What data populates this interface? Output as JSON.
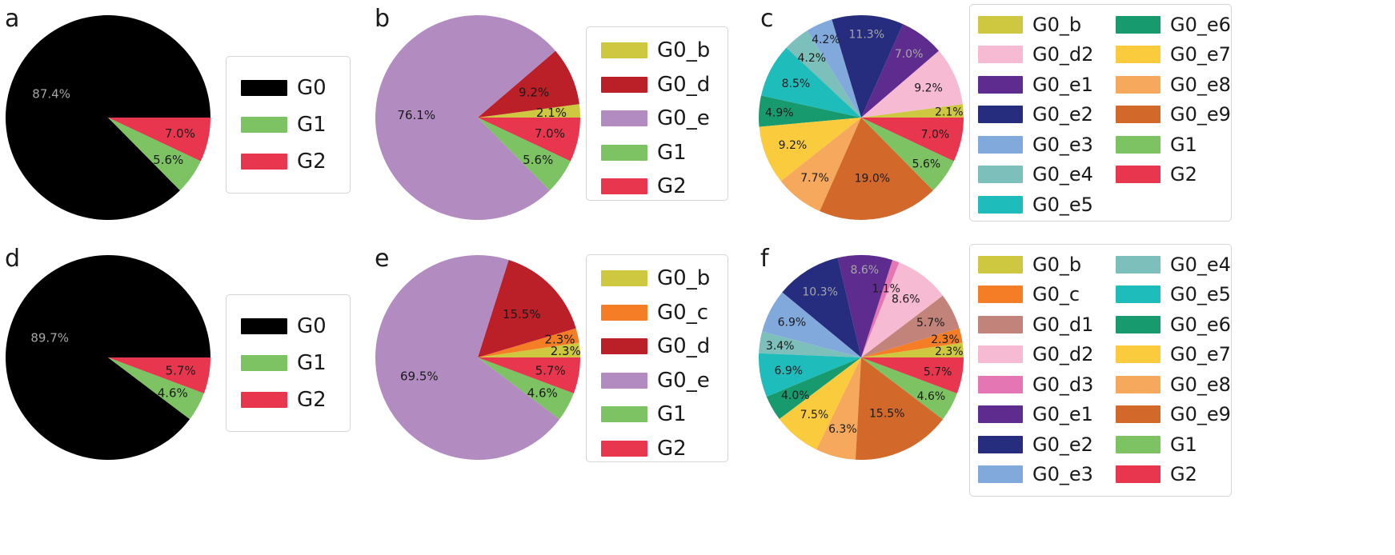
{
  "chart_data": [
    {
      "panel": "a",
      "type": "pie",
      "slices": [
        {
          "label": "G0",
          "value": 87.4,
          "text": "87.4%",
          "color": "#000000",
          "label_color": "#a6a6a6"
        },
        {
          "label": "G1",
          "value": 5.6,
          "text": "5.6%",
          "color": "#7dc363",
          "label_color": "#1a1a1a"
        },
        {
          "label": "G2",
          "value": 7.0,
          "text": "7.0%",
          "color": "#e8364f",
          "label_color": "#1a1a1a"
        }
      ],
      "legend": [
        "G0",
        "G1",
        "G2"
      ]
    },
    {
      "panel": "b",
      "type": "pie",
      "slices": [
        {
          "label": "G0_b",
          "value": 2.1,
          "text": "2.1%",
          "color": "#cdc840",
          "label_color": "#1a1a1a"
        },
        {
          "label": "G0_d",
          "value": 9.2,
          "text": "9.2%",
          "color": "#bb1f27",
          "label_color": "#1a1a1a"
        },
        {
          "label": "G0_e",
          "value": 76.1,
          "text": "76.1%",
          "color": "#b28cc0",
          "label_color": "#1a1a1a"
        },
        {
          "label": "G1",
          "value": 5.6,
          "text": "5.6%",
          "color": "#7dc363",
          "label_color": "#1a1a1a"
        },
        {
          "label": "G2",
          "value": 7.0,
          "text": "7.0%",
          "color": "#e8364f",
          "label_color": "#1a1a1a"
        }
      ],
      "legend": [
        "G0_b",
        "G0_d",
        "G0_e",
        "G1",
        "G2"
      ]
    },
    {
      "panel": "c",
      "type": "pie",
      "slices": [
        {
          "label": "G0_b",
          "value": 2.1,
          "text": "2.1%",
          "color": "#cdc840",
          "label_color": "#1a1a1a"
        },
        {
          "label": "G0_d2",
          "value": 9.2,
          "text": "9.2%",
          "color": "#f6bad2",
          "label_color": "#1a1a1a"
        },
        {
          "label": "G0_e1",
          "value": 7.0,
          "text": "7.0%",
          "color": "#5e2c8f",
          "label_color": "#a6a6a6"
        },
        {
          "label": "G0_e2",
          "value": 11.3,
          "text": "11.3%",
          "color": "#262d7f",
          "label_color": "#a6a6a6"
        },
        {
          "label": "G0_e3",
          "value": 4.2,
          "text": "4.2%",
          "color": "#82a9dc",
          "label_color": "#1a1a1a"
        },
        {
          "label": "G0_e4",
          "value": 4.2,
          "text": "4.2%",
          "color": "#7cbfbb",
          "label_color": "#1a1a1a"
        },
        {
          "label": "G0_e5",
          "value": 8.5,
          "text": "8.5%",
          "color": "#1fbcbc",
          "label_color": "#1a1a1a"
        },
        {
          "label": "G0_e6",
          "value": 4.9,
          "text": "4.9%",
          "color": "#189a6f",
          "label_color": "#1a1a1a"
        },
        {
          "label": "G0_e7",
          "value": 9.2,
          "text": "9.2%",
          "color": "#fbcb3e",
          "label_color": "#1a1a1a"
        },
        {
          "label": "G0_e8",
          "value": 7.7,
          "text": "7.7%",
          "color": "#f6a95c",
          "label_color": "#1a1a1a"
        },
        {
          "label": "G0_e9",
          "value": 19.0,
          "text": "19.0%",
          "color": "#d2692a",
          "label_color": "#1a1a1a"
        },
        {
          "label": "G1",
          "value": 5.6,
          "text": "5.6%",
          "color": "#7dc363",
          "label_color": "#1a1a1a"
        },
        {
          "label": "G2",
          "value": 7.0,
          "text": "7.0%",
          "color": "#e8364f",
          "label_color": "#1a1a1a"
        }
      ],
      "legend_columns": [
        [
          "G0_b",
          "G0_d2",
          "G0_e1",
          "G0_e2",
          "G0_e3",
          "G0_e4",
          "G0_e5"
        ],
        [
          "G0_e6",
          "G0_e7",
          "G0_e8",
          "G0_e9",
          "G1",
          "G2"
        ]
      ]
    },
    {
      "panel": "d",
      "type": "pie",
      "slices": [
        {
          "label": "G0",
          "value": 89.7,
          "text": "89.7%",
          "color": "#000000",
          "label_color": "#a6a6a6"
        },
        {
          "label": "G1",
          "value": 4.6,
          "text": "4.6%",
          "color": "#7dc363",
          "label_color": "#1a1a1a"
        },
        {
          "label": "G2",
          "value": 5.7,
          "text": "5.7%",
          "color": "#e8364f",
          "label_color": "#1a1a1a"
        }
      ],
      "legend": [
        "G0",
        "G1",
        "G2"
      ]
    },
    {
      "panel": "e",
      "type": "pie",
      "slices": [
        {
          "label": "G0_b",
          "value": 2.3,
          "text": "2.3%",
          "color": "#cdc840",
          "label_color": "#1a1a1a"
        },
        {
          "label": "G0_c",
          "value": 2.3,
          "text": "2.3%",
          "color": "#f57d25",
          "label_color": "#1a1a1a"
        },
        {
          "label": "G0_d",
          "value": 15.5,
          "text": "15.5%",
          "color": "#bb1f27",
          "label_color": "#1a1a1a"
        },
        {
          "label": "G0_e",
          "value": 69.5,
          "text": "69.5%",
          "color": "#b28cc0",
          "label_color": "#1a1a1a"
        },
        {
          "label": "G1",
          "value": 4.6,
          "text": "4.6%",
          "color": "#7dc363",
          "label_color": "#1a1a1a"
        },
        {
          "label": "G2",
          "value": 5.7,
          "text": "5.7%",
          "color": "#e8364f",
          "label_color": "#1a1a1a"
        }
      ],
      "legend": [
        "G0_b",
        "G0_c",
        "G0_d",
        "G0_e",
        "G1",
        "G2"
      ]
    },
    {
      "panel": "f",
      "type": "pie",
      "slices": [
        {
          "label": "G0_b",
          "value": 2.3,
          "text": "2.3%",
          "color": "#cdc840",
          "label_color": "#1a1a1a"
        },
        {
          "label": "G0_c",
          "value": 2.3,
          "text": "2.3%",
          "color": "#f57d25",
          "label_color": "#1a1a1a"
        },
        {
          "label": "G0_d1",
          "value": 5.7,
          "text": "5.7%",
          "color": "#c2847a",
          "label_color": "#1a1a1a"
        },
        {
          "label": "G0_d2",
          "value": 8.6,
          "text": "8.6%",
          "color": "#f6bad2",
          "label_color": "#1a1a1a"
        },
        {
          "label": "G0_d3",
          "value": 1.1,
          "text": "1.1%",
          "color": "#e477b3",
          "label_color": "#1a1a1a"
        },
        {
          "label": "G0_e1",
          "value": 8.6,
          "text": "8.6%",
          "color": "#5e2c8f",
          "label_color": "#a6a6a6"
        },
        {
          "label": "G0_e2",
          "value": 10.3,
          "text": "10.3%",
          "color": "#262d7f",
          "label_color": "#a6a6a6"
        },
        {
          "label": "G0_e3",
          "value": 6.9,
          "text": "6.9%",
          "color": "#82a9dc",
          "label_color": "#1a1a1a"
        },
        {
          "label": "G0_e4",
          "value": 3.4,
          "text": "3.4%",
          "color": "#7cbfbb",
          "label_color": "#1a1a1a"
        },
        {
          "label": "G0_e5",
          "value": 6.9,
          "text": "6.9%",
          "color": "#1fbcbc",
          "label_color": "#1a1a1a"
        },
        {
          "label": "G0_e6",
          "value": 4.0,
          "text": "4.0%",
          "color": "#189a6f",
          "label_color": "#1a1a1a"
        },
        {
          "label": "G0_e7",
          "value": 7.5,
          "text": "7.5%",
          "color": "#fbcb3e",
          "label_color": "#1a1a1a"
        },
        {
          "label": "G0_e8",
          "value": 6.3,
          "text": "6.3%",
          "color": "#f6a95c",
          "label_color": "#1a1a1a"
        },
        {
          "label": "G0_e9",
          "value": 15.5,
          "text": "15.5%",
          "color": "#d2692a",
          "label_color": "#1a1a1a"
        },
        {
          "label": "G1",
          "value": 4.6,
          "text": "4.6%",
          "color": "#7dc363",
          "label_color": "#1a1a1a"
        },
        {
          "label": "G2",
          "value": 5.7,
          "text": "5.7%",
          "color": "#e8364f",
          "label_color": "#1a1a1a"
        }
      ],
      "legend_columns": [
        [
          "G0_b",
          "G0_c",
          "G0_d1",
          "G0_d2",
          "G0_d3",
          "G0_e1",
          "G0_e2",
          "G0_e3"
        ],
        [
          "G0_e4",
          "G0_e5",
          "G0_e6",
          "G0_e7",
          "G0_e8",
          "G0_e9",
          "G1",
          "G2"
        ]
      ]
    }
  ]
}
